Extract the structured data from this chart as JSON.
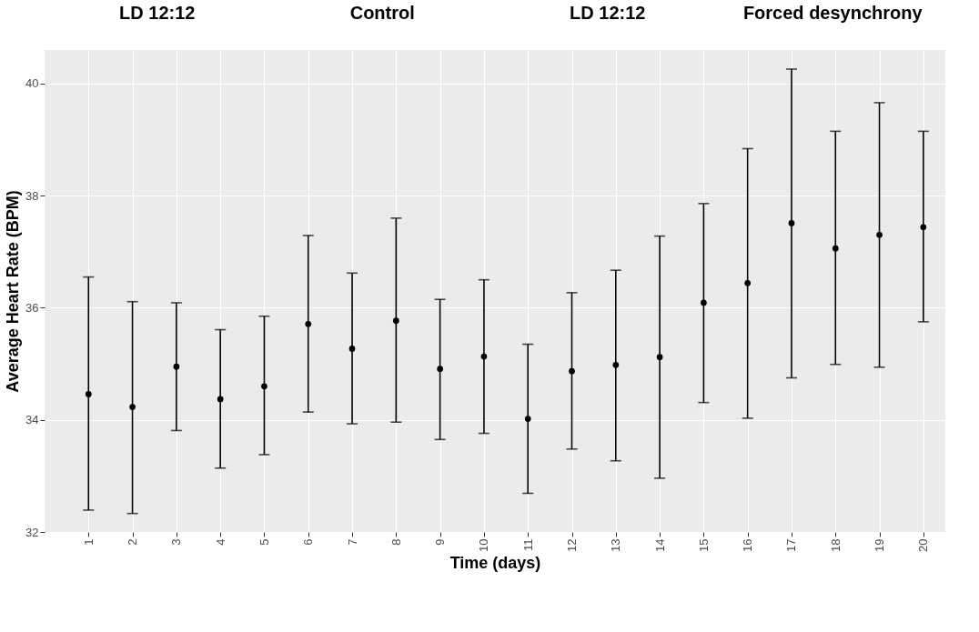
{
  "chart_data": {
    "type": "scatter",
    "xlabel": "Time (days)",
    "ylabel": "Average Heart Rate (BPM)",
    "x": [
      1,
      2,
      3,
      4,
      5,
      6,
      7,
      8,
      9,
      10,
      11,
      12,
      13,
      14,
      15,
      16,
      17,
      18,
      19,
      20
    ],
    "values": [
      34.46,
      34.23,
      34.95,
      34.37,
      34.6,
      35.71,
      35.27,
      35.77,
      34.91,
      35.13,
      34.02,
      34.87,
      34.98,
      35.12,
      36.09,
      36.44,
      37.51,
      37.06,
      37.3,
      37.44
    ],
    "errors": [
      [
        32.39,
        36.55
      ],
      [
        32.33,
        36.11
      ],
      [
        33.81,
        36.09
      ],
      [
        33.14,
        35.61
      ],
      [
        33.38,
        35.85
      ],
      [
        34.14,
        37.29
      ],
      [
        33.93,
        36.62
      ],
      [
        33.96,
        37.6
      ],
      [
        33.65,
        36.15
      ],
      [
        33.76,
        36.5
      ],
      [
        32.69,
        35.35
      ],
      [
        33.48,
        36.27
      ],
      [
        33.27,
        36.67
      ],
      [
        32.96,
        37.28
      ],
      [
        34.31,
        37.86
      ],
      [
        34.03,
        38.84
      ],
      [
        34.75,
        40.26
      ],
      [
        34.99,
        39.15
      ],
      [
        34.94,
        39.66
      ],
      [
        35.75,
        39.15
      ]
    ],
    "color": "#000000",
    "marker": "circle",
    "xlim": [
      0,
      20.5
    ],
    "xticks": [
      1,
      2,
      3,
      4,
      5,
      6,
      7,
      8,
      9,
      10,
      11,
      12,
      13,
      14,
      15,
      16,
      17,
      18,
      19,
      20
    ],
    "ylim": [
      32,
      40.6
    ],
    "yticks": [
      32,
      34,
      36,
      38,
      40
    ],
    "grid": true,
    "annotations": [
      "LD 12:12",
      "Control",
      "LD 12:12",
      "Forced desynchrony"
    ]
  }
}
